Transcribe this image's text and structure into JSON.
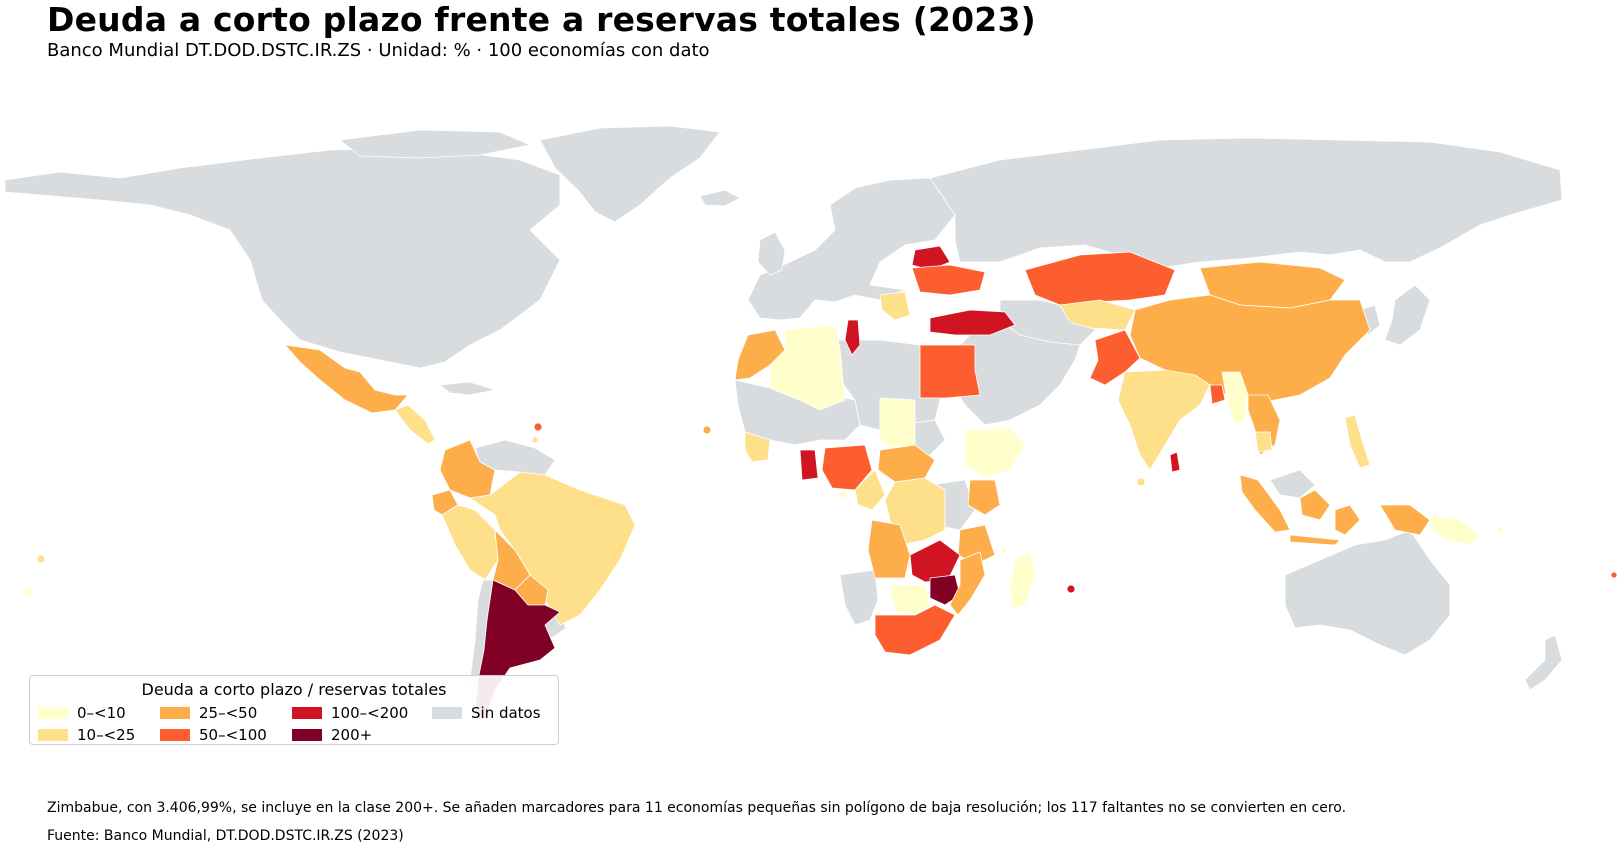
{
  "header": {
    "title": "Deuda a corto plazo frente a reservas totales (2023)",
    "subtitle": "Banco Mundial DT.DOD.DSTC.IR.ZS · Unidad: % · 100 economías con dato"
  },
  "colors": {
    "bin_0_10": "#ffffcc",
    "bin_10_25": "#fee08b",
    "bin_25_50": "#fdae4a",
    "bin_50_100": "#fc5e2f",
    "bin_100_200": "#d11421",
    "bin_200_plus": "#800026",
    "no_data": "#d9dcdf",
    "border": "#ffffff"
  },
  "legend": {
    "title": "Deuda a corto plazo / reservas totales",
    "items": [
      {
        "label": "0–<10",
        "color": "#ffffcc"
      },
      {
        "label": "10–<25",
        "color": "#fee08b"
      },
      {
        "label": "25–<50",
        "color": "#fdae4a"
      },
      {
        "label": "50–<100",
        "color": "#fc5e2f"
      },
      {
        "label": "100–<200",
        "color": "#d11421"
      },
      {
        "label": "200+",
        "color": "#800026"
      },
      {
        "label": "Sin datos",
        "color": "#d9dcdf"
      }
    ]
  },
  "footer": {
    "note": "Zimbabue, con 3.406,99%, se incluye en la clase 200+. Se añaden marcadores para 11 economías pequeñas sin polígono de baja resolución; los 117 faltantes no se convierten en cero.",
    "source": "Fuente: Banco Mundial, DT.DOD.DSTC.IR.ZS (2023)"
  }
}
